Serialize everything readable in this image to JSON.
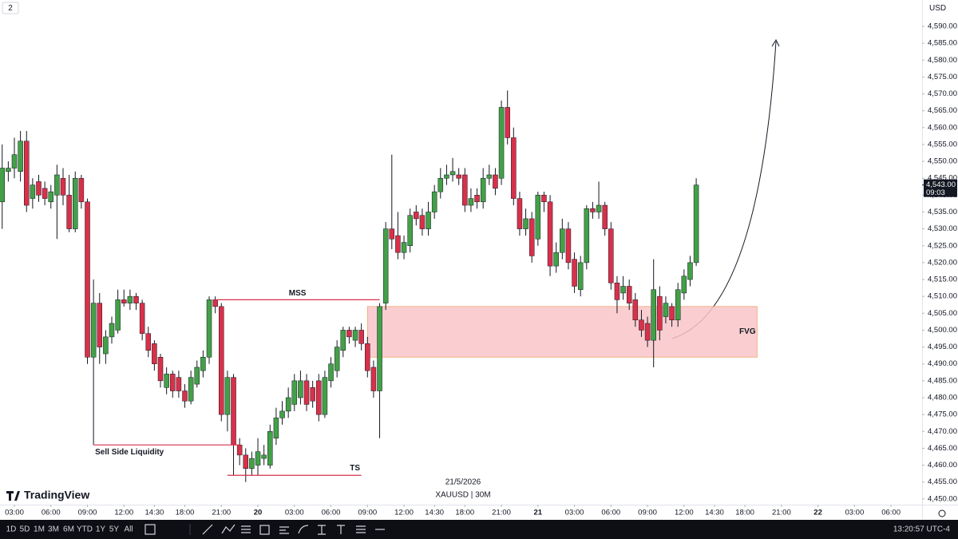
{
  "chart_data": {
    "type": "candlestick",
    "up_color": "#43a047",
    "down_color": "#d9304a",
    "xlim": [
      -2.36,
      149.1
    ],
    "ylim": [
      4448.3,
      4597.8
    ],
    "grid": false,
    "xticks": [
      {
        "value": 0,
        "label": "03:00"
      },
      {
        "value": 6,
        "label": "06:00"
      },
      {
        "value": 12,
        "label": "09:00"
      },
      {
        "value": 18,
        "label": "12:00"
      },
      {
        "value": 23,
        "label": "14:30"
      },
      {
        "value": 28,
        "label": "18:00"
      },
      {
        "value": 34,
        "label": "21:00"
      },
      {
        "value": 40,
        "label": "20"
      },
      {
        "value": 46,
        "label": "03:00"
      },
      {
        "value": 52,
        "label": "06:00"
      },
      {
        "value": 58,
        "label": "09:00"
      },
      {
        "value": 64,
        "label": "12:00"
      },
      {
        "value": 69,
        "label": "14:30"
      },
      {
        "value": 74,
        "label": "18:00"
      },
      {
        "value": 80,
        "label": "21:00"
      },
      {
        "value": 86,
        "label": "21"
      },
      {
        "value": 92,
        "label": "03:00"
      },
      {
        "value": 98,
        "label": "06:00"
      },
      {
        "value": 104,
        "label": "09:00"
      },
      {
        "value": 110,
        "label": "12:00"
      },
      {
        "value": 115,
        "label": "14:30"
      },
      {
        "value": 120,
        "label": "18:00"
      },
      {
        "value": 126,
        "label": "21:00"
      },
      {
        "value": 132,
        "label": "22"
      },
      {
        "value": 138,
        "label": "03:00"
      },
      {
        "value": 144,
        "label": "06:00"
      }
    ],
    "yticks": [
      {
        "value": 4450,
        "label": "4,450.00"
      },
      {
        "value": 4455,
        "label": "4,455.00"
      },
      {
        "value": 4460,
        "label": "4,460.00"
      },
      {
        "value": 4465,
        "label": "4,465.00"
      },
      {
        "value": 4470,
        "label": "4,470.00"
      },
      {
        "value": 4475,
        "label": "4,475.00"
      },
      {
        "value": 4480,
        "label": "4,480.00"
      },
      {
        "value": 4485,
        "label": "4,485.00"
      },
      {
        "value": 4490,
        "label": "4,490.00"
      },
      {
        "value": 4495,
        "label": "4,495.00"
      },
      {
        "value": 4500,
        "label": "4,500.00"
      },
      {
        "value": 4505,
        "label": "4,505.00"
      },
      {
        "value": 4510,
        "label": "4,510.00"
      },
      {
        "value": 4515,
        "label": "4,515.00"
      },
      {
        "value": 4520,
        "label": "4,520.00"
      },
      {
        "value": 4525,
        "label": "4,525.00"
      },
      {
        "value": 4530,
        "label": "4,530.00"
      },
      {
        "value": 4535,
        "label": "4,535.00"
      },
      {
        "value": 4540,
        "label": "4,540.00"
      },
      {
        "value": 4545,
        "label": "4,545.00"
      },
      {
        "value": 4550,
        "label": "4,550.00"
      },
      {
        "value": 4555,
        "label": "4,555.00"
      },
      {
        "value": 4560,
        "label": "4,560.00"
      },
      {
        "value": 4565,
        "label": "4,565.00"
      },
      {
        "value": 4570,
        "label": "4,570.00"
      },
      {
        "value": 4575,
        "label": "4,575.00"
      },
      {
        "value": 4580,
        "label": "4,580.00"
      },
      {
        "value": 4585,
        "label": "4,585.00"
      },
      {
        "value": 4590,
        "label": "4,590.00"
      }
    ],
    "x": [
      -2,
      -1,
      0,
      1,
      2,
      3,
      4,
      5,
      6,
      7,
      8,
      9,
      10,
      11,
      12,
      13,
      14,
      15,
      16,
      17,
      18,
      19,
      20,
      21,
      22,
      23,
      24,
      25,
      26,
      27,
      28,
      29,
      30,
      31,
      32,
      33,
      34,
      35,
      36,
      37,
      38,
      39,
      40,
      41,
      42,
      43,
      44,
      45,
      46,
      47,
      48,
      49,
      50,
      51,
      52,
      53,
      54,
      55,
      56,
      57,
      58,
      59,
      60,
      61,
      62,
      63,
      64,
      65,
      66,
      67,
      68,
      69,
      70,
      71,
      72,
      73,
      74,
      75,
      76,
      77,
      78,
      79,
      80,
      81,
      82,
      83,
      84,
      85,
      86,
      87,
      88,
      89,
      90,
      91,
      92,
      93,
      94,
      95,
      96,
      97,
      98,
      99,
      100,
      101,
      102,
      103,
      104,
      105,
      106,
      107,
      108,
      109,
      110,
      111,
      112
    ],
    "ohlc": [
      [
        4538,
        4555,
        4530,
        4548
      ],
      [
        4547,
        4550,
        4544,
        4548
      ],
      [
        4548,
        4557,
        4545,
        4552
      ],
      [
        4547,
        4559,
        4544,
        4556
      ],
      [
        4556,
        4559,
        4535,
        4537
      ],
      [
        4539,
        4545,
        4536,
        4543
      ],
      [
        4544,
        4546,
        4538,
        4540
      ],
      [
        4542,
        4544,
        4537,
        4539
      ],
      [
        4538,
        4543,
        4536,
        4541
      ],
      [
        4540,
        4549,
        4527,
        4546
      ],
      [
        4545,
        4548,
        4537,
        4540
      ],
      [
        4540,
        4546,
        4529,
        4530
      ],
      [
        4530,
        4547,
        4529,
        4545
      ],
      [
        4545,
        4546,
        4536,
        4538
      ],
      [
        4538,
        4539,
        4490,
        4492
      ],
      [
        4492,
        4515,
        4466,
        4508
      ],
      [
        4508,
        4511,
        4490,
        4495
      ],
      [
        4493,
        4500,
        4490,
        4498
      ],
      [
        4498,
        4504,
        4496,
        4502
      ],
      [
        4500,
        4512,
        4499,
        4509
      ],
      [
        4509,
        4512,
        4507,
        4508
      ],
      [
        4508,
        4512,
        4506,
        4510
      ],
      [
        4510,
        4511,
        4506,
        4508
      ],
      [
        4508,
        4509,
        4497,
        4499
      ],
      [
        4499,
        4501,
        4492,
        4494
      ],
      [
        4496,
        4497,
        4488,
        4490
      ],
      [
        4492,
        4493,
        4483,
        4485
      ],
      [
        4483,
        4489,
        4481,
        4487
      ],
      [
        4487,
        4488,
        4480,
        4482
      ],
      [
        4486,
        4488,
        4480,
        4482
      ],
      [
        4482,
        4484,
        4477,
        4479
      ],
      [
        4479,
        4488,
        4478,
        4486
      ],
      [
        4484,
        4491,
        4483,
        4489
      ],
      [
        4488,
        4494,
        4486,
        4492
      ],
      [
        4492,
        4510,
        4490,
        4509
      ],
      [
        4509,
        4510,
        4505,
        4507
      ],
      [
        4507,
        4508,
        4473,
        4475
      ],
      [
        4475,
        4488,
        4470,
        4486
      ],
      [
        4486,
        4487,
        4457,
        4466
      ],
      [
        4466,
        4468,
        4460,
        4463
      ],
      [
        4463,
        4465,
        4455,
        4459
      ],
      [
        4459,
        4464,
        4457,
        4462
      ],
      [
        4460,
        4468,
        4457,
        4464
      ],
      [
        4462,
        4466,
        4460,
        4463
      ],
      [
        4460,
        4472,
        4459,
        4470
      ],
      [
        4468,
        4477,
        4466,
        4474
      ],
      [
        4474,
        4479,
        4472,
        4476
      ],
      [
        4476,
        4483,
        4474,
        4480
      ],
      [
        4478,
        4487,
        4476,
        4485
      ],
      [
        4480,
        4488,
        4478,
        4485
      ],
      [
        4485,
        4487,
        4476,
        4478
      ],
      [
        4483,
        4485,
        4477,
        4479
      ],
      [
        4485,
        4487,
        4473,
        4475
      ],
      [
        4475,
        4488,
        4474,
        4486
      ],
      [
        4485,
        4492,
        4483,
        4490
      ],
      [
        4488,
        4497,
        4486,
        4495
      ],
      [
        4494,
        4501,
        4492,
        4500
      ],
      [
        4500,
        4501,
        4496,
        4498
      ],
      [
        4497,
        4501,
        4495,
        4500
      ],
      [
        4500,
        4502,
        4494,
        4496
      ],
      [
        4496,
        4498,
        4486,
        4488
      ],
      [
        4489,
        4491,
        4480,
        4482
      ],
      [
        4482,
        4508,
        4468,
        4507
      ],
      [
        4508,
        4532,
        4506,
        4530
      ],
      [
        4530,
        4552,
        4524,
        4527
      ],
      [
        4528,
        4535,
        4521,
        4523
      ],
      [
        4523,
        4528,
        4521,
        4526
      ],
      [
        4525,
        4536,
        4523,
        4534
      ],
      [
        4535,
        4537,
        4531,
        4533
      ],
      [
        4534,
        4536,
        4528,
        4530
      ],
      [
        4530,
        4538,
        4528,
        4535
      ],
      [
        4535,
        4543,
        4533,
        4541
      ],
      [
        4541,
        4548,
        4539,
        4545
      ],
      [
        4545,
        4549,
        4543,
        4546
      ],
      [
        4546,
        4551,
        4544,
        4547
      ],
      [
        4546,
        4548,
        4543,
        4545
      ],
      [
        4546,
        4548,
        4535,
        4537
      ],
      [
        4537,
        4542,
        4535,
        4539
      ],
      [
        4540,
        4542,
        4536,
        4538
      ],
      [
        4538,
        4548,
        4536,
        4545
      ],
      [
        4545,
        4549,
        4543,
        4546
      ],
      [
        4546,
        4548,
        4540,
        4542
      ],
      [
        4545,
        4568,
        4543,
        4566
      ],
      [
        4566,
        4571,
        4555,
        4557
      ],
      [
        4557,
        4560,
        4537,
        4539
      ],
      [
        4539,
        4541,
        4528,
        4530
      ],
      [
        4530,
        4536,
        4528,
        4533
      ],
      [
        4533,
        4535,
        4520,
        4522
      ],
      [
        4527,
        4541,
        4525,
        4540
      ],
      [
        4540,
        4541,
        4535,
        4538
      ],
      [
        4538,
        4540,
        4516,
        4519
      ],
      [
        4519,
        4526,
        4517,
        4523
      ],
      [
        4523,
        4533,
        4521,
        4530
      ],
      [
        4530,
        4532,
        4518,
        4520
      ],
      [
        4521,
        4523,
        4511,
        4513
      ],
      [
        4512,
        4522,
        4510,
        4520
      ],
      [
        4520,
        4537,
        4518,
        4536
      ],
      [
        4536,
        4538,
        4533,
        4535
      ],
      [
        4535,
        4544,
        4533,
        4537
      ],
      [
        4537,
        4538,
        4528,
        4530
      ],
      [
        4530,
        4532,
        4512,
        4514
      ],
      [
        4514,
        4516,
        4505,
        4509
      ],
      [
        4511,
        4516,
        4509,
        4513
      ],
      [
        4513,
        4515,
        4506,
        4508
      ],
      [
        4509,
        4511,
        4501,
        4503
      ],
      [
        4503,
        4506,
        4498,
        4500
      ],
      [
        4502,
        4504,
        4495,
        4497
      ],
      [
        4497,
        4521,
        4489,
        4512
      ],
      [
        4510,
        4513,
        4497,
        4500
      ],
      [
        4504,
        4510,
        4502,
        4508
      ],
      [
        4507,
        4508,
        4501,
        4503
      ],
      [
        4503,
        4514,
        4501,
        4512
      ],
      [
        4511,
        4518,
        4509,
        4516
      ],
      [
        4515,
        4522,
        4513,
        4520
      ],
      [
        4520,
        4545,
        4519,
        4543
      ]
    ],
    "annotations": [
      {
        "text": "MSS",
        "y": 4509,
        "x": [
          33,
          60
        ],
        "color": "#d9304a"
      },
      {
        "text": "Sell Side Liquidity",
        "y": 4466,
        "x": [
          13,
          37
        ],
        "color": "#d9304a"
      },
      {
        "text": "TS",
        "y": 4457,
        "x": [
          35,
          57
        ],
        "color": "#d9304a"
      },
      {
        "text": "FVG",
        "y": [
          4492,
          4507
        ],
        "x": [
          58,
          122
        ],
        "color": "#f9c5c9"
      }
    ],
    "last_price": {
      "value": 4543,
      "label": "4,543.00",
      "countdown": "09:03"
    },
    "symbol": "XAUUSD | 30M",
    "date": "21/5/2026",
    "currency": "USD"
  },
  "header": {
    "badge": "2",
    "brand": "TradingView"
  },
  "toolbar": {
    "ranges": [
      "1D",
      "5D",
      "1M",
      "3M",
      "6M",
      "YTD",
      "1Y",
      "5Y",
      "All"
    ],
    "clock": "13:20:57 UTC-4"
  }
}
